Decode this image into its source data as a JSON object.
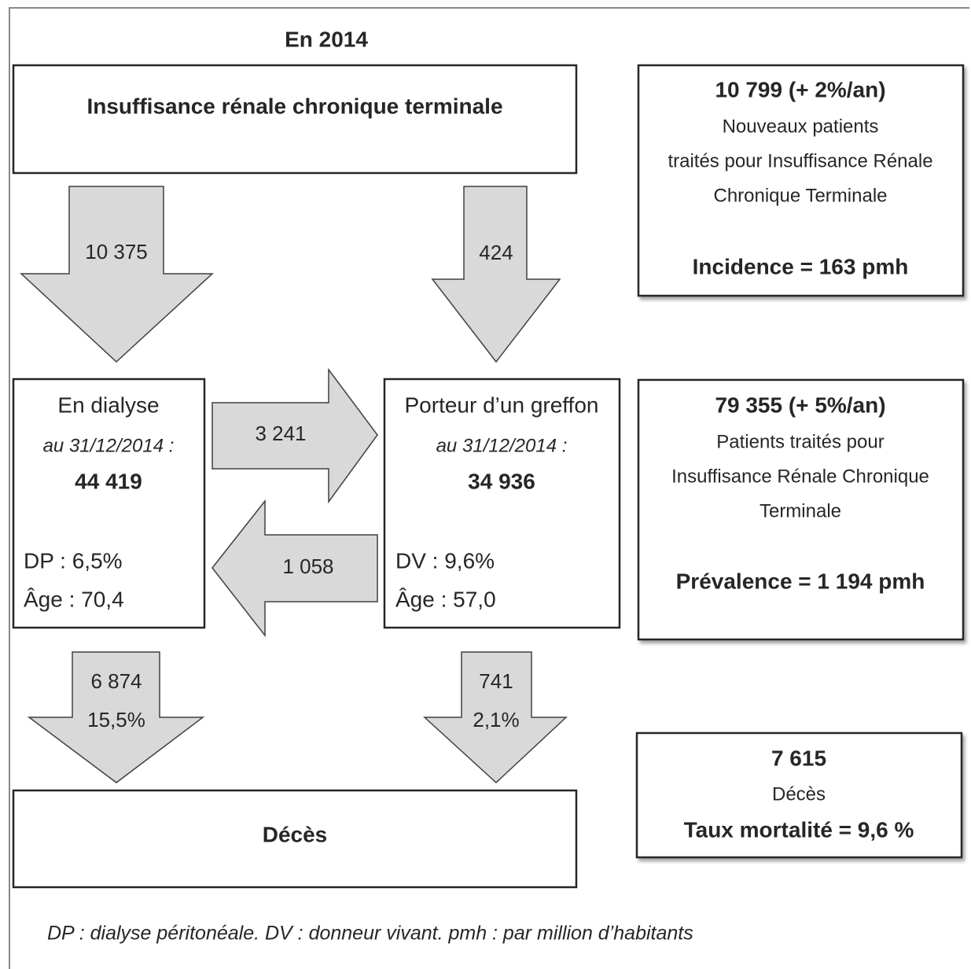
{
  "header": {
    "title": "En 2014"
  },
  "top_box": {
    "label": "Insuffisance rénale chronique terminale"
  },
  "arrows": {
    "to_dialysis": "10 375",
    "to_graft": "424",
    "dialysis_to_graft": "3 241",
    "graft_to_dialysis": "1 058",
    "dialysis_deaths": {
      "count": "6 874",
      "rate": "15,5%"
    },
    "graft_deaths": {
      "count": "741",
      "rate": "2,1%"
    }
  },
  "dialysis_box": {
    "title": "En dialyse",
    "date": "au 31/12/2014 :",
    "count": "44 419",
    "lines": [
      "DP : 6,5%",
      "Âge : 70,4"
    ]
  },
  "graft_box": {
    "title": "Porteur d’un greffon",
    "date": "au 31/12/2014 :",
    "count": "34 936",
    "lines": [
      "DV : 9,6%",
      "Âge : 57,0"
    ]
  },
  "deaths_box": {
    "label": "Décès"
  },
  "side_boxes": [
    {
      "headline": "10 799 (+ 2%/an)",
      "lines": [
        "Nouveaux patients",
        "traités pour Insuffisance Rénale",
        "Chronique Terminale"
      ],
      "footer": "Incidence = 163 pmh"
    },
    {
      "headline": "79 355 (+ 5%/an)",
      "lines": [
        "Patients traités pour",
        "Insuffisance Rénale Chronique",
        "Terminale"
      ],
      "footer": "Prévalence = 1 194 pmh"
    },
    {
      "headline": "7 615",
      "lines": [
        "Décès"
      ],
      "footer": "Taux mortalité = 9,6 %"
    }
  ],
  "footnote": "DP : dialyse péritonéale. DV : donneur vivant. pmh : par million d’habitants"
}
